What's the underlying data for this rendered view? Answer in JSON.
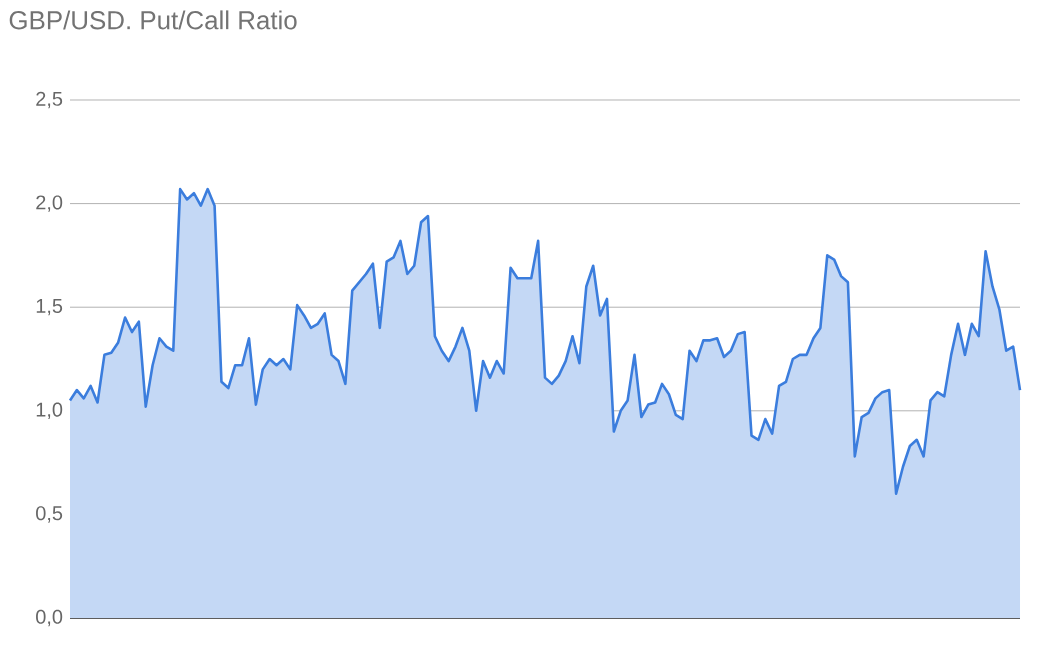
{
  "chart_data": {
    "type": "area",
    "title": "GBP/USD. Put/Call Ratio",
    "categories": [
      null,
      null,
      null,
      null,
      null,
      null,
      null,
      null,
      null,
      null,
      null,
      null,
      null,
      null,
      null,
      null,
      null,
      null,
      null,
      null,
      null,
      null,
      null,
      null,
      null,
      null,
      null,
      null,
      null,
      null,
      null,
      null,
      null,
      null,
      null,
      null,
      null,
      null,
      null,
      null,
      null,
      null,
      null,
      null,
      null,
      null,
      null,
      null,
      null,
      null,
      null,
      null,
      null,
      null,
      null,
      null,
      null,
      null,
      null,
      null,
      null,
      null,
      null,
      null,
      null,
      null,
      null,
      null,
      null,
      null,
      null,
      null,
      null,
      null,
      null,
      null,
      null,
      null,
      null,
      null,
      null,
      null,
      null,
      null,
      null,
      null,
      null,
      null,
      null,
      null,
      null,
      null,
      null,
      null,
      null,
      null,
      null,
      null,
      null,
      null,
      null,
      null,
      null,
      null,
      null,
      null,
      null,
      null,
      null,
      null,
      null,
      null,
      null,
      null,
      null,
      null,
      null,
      null,
      null,
      null,
      null,
      null,
      null,
      null,
      null,
      null,
      null,
      null,
      null,
      null,
      null,
      null,
      null,
      null,
      null,
      null,
      null,
      null,
      null
    ],
    "values": [
      1.05,
      1.1,
      1.06,
      1.12,
      1.04,
      1.27,
      1.28,
      1.33,
      1.45,
      1.38,
      1.43,
      1.02,
      1.22,
      1.35,
      1.31,
      1.29,
      2.07,
      2.02,
      2.05,
      1.99,
      2.07,
      1.99,
      1.14,
      1.11,
      1.22,
      1.22,
      1.35,
      1.03,
      1.2,
      1.25,
      1.22,
      1.25,
      1.2,
      1.51,
      1.46,
      1.4,
      1.42,
      1.47,
      1.27,
      1.24,
      1.13,
      1.58,
      1.62,
      1.66,
      1.71,
      1.4,
      1.72,
      1.74,
      1.82,
      1.66,
      1.7,
      1.91,
      1.94,
      1.36,
      1.29,
      1.24,
      1.31,
      1.4,
      1.29,
      1.0,
      1.24,
      1.16,
      1.24,
      1.18,
      1.69,
      1.64,
      1.64,
      1.64,
      1.82,
      1.16,
      1.13,
      1.17,
      1.24,
      1.36,
      1.23,
      1.6,
      1.7,
      1.46,
      1.54,
      0.9,
      1.0,
      1.05,
      1.27,
      0.97,
      1.03,
      1.04,
      1.13,
      1.08,
      0.98,
      0.96,
      1.29,
      1.24,
      1.34,
      1.34,
      1.35,
      1.26,
      1.29,
      1.37,
      1.38,
      0.88,
      0.86,
      0.96,
      0.89,
      1.12,
      1.14,
      1.25,
      1.27,
      1.27,
      1.35,
      1.4,
      1.75,
      1.73,
      1.65,
      1.62,
      0.78,
      0.97,
      0.99,
      1.06,
      1.09,
      1.1,
      0.6,
      0.73,
      0.83,
      0.86,
      0.78,
      1.05,
      1.09,
      1.07,
      1.27,
      1.42,
      1.27,
      1.42,
      1.36,
      1.77,
      1.6,
      1.49,
      1.29,
      1.31,
      1.1
    ],
    "color": "#3b7ddd",
    "ylim": [
      0,
      2.5
    ],
    "yticks": [
      {
        "value": 0,
        "label": "0,0"
      },
      {
        "value": 0.5,
        "label": "0,5"
      },
      {
        "value": 1,
        "label": "1,0"
      },
      {
        "value": 1.5,
        "label": "1,5"
      },
      {
        "value": 2,
        "label": "2,0"
      },
      {
        "value": 2.5,
        "label": "2,5"
      }
    ],
    "grid": "y",
    "tick_labels": "y"
  }
}
